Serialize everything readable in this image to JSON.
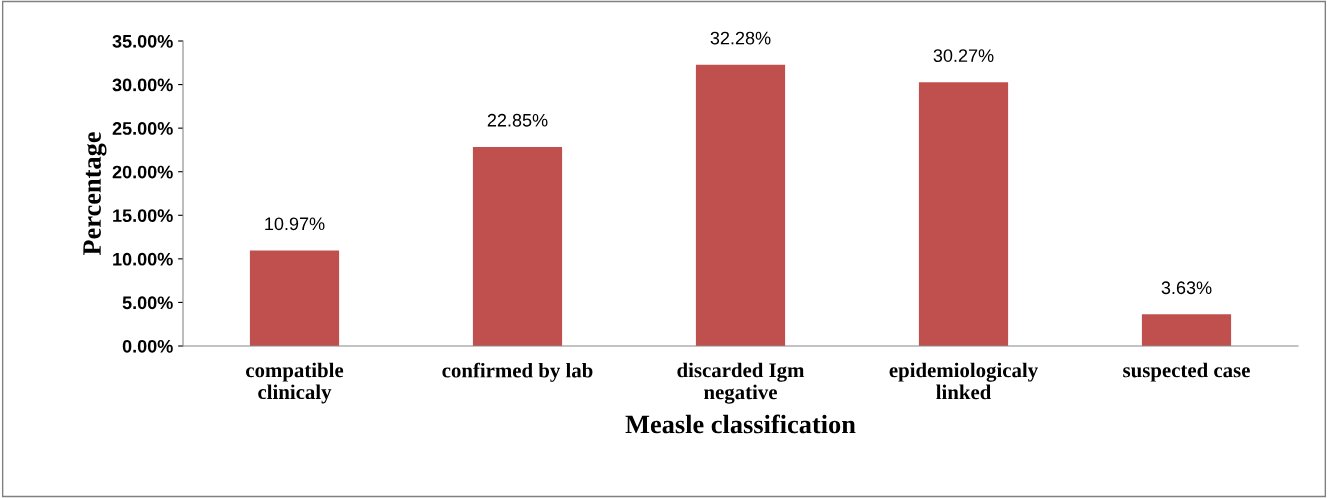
{
  "chart_data": {
    "type": "bar",
    "xlabel": "Measle classification",
    "ylabel": "Percentage",
    "categories": [
      "compatible\nclinicaly",
      "confirmed by lab",
      "discarded Igm\nnegative",
      "epidemiologicaly\nlinked",
      "suspected case"
    ],
    "values": [
      10.97,
      22.85,
      32.28,
      30.27,
      3.63
    ],
    "value_labels": [
      "10.97%",
      "22.85%",
      "32.28%",
      "30.27%",
      "3.63%"
    ],
    "color": "#c0504d",
    "ylim": [
      0,
      35
    ],
    "yticks": [
      {
        "value": 0,
        "label": "0.00%"
      },
      {
        "value": 5,
        "label": "5.00%"
      },
      {
        "value": 10,
        "label": "10.00%"
      },
      {
        "value": 15,
        "label": "15.00%"
      },
      {
        "value": 20,
        "label": "20.00%"
      },
      {
        "value": 25,
        "label": "25.00%"
      },
      {
        "value": 30,
        "label": "30.00%"
      },
      {
        "value": 35,
        "label": "35.00%"
      }
    ],
    "grid": false,
    "legend": false
  }
}
